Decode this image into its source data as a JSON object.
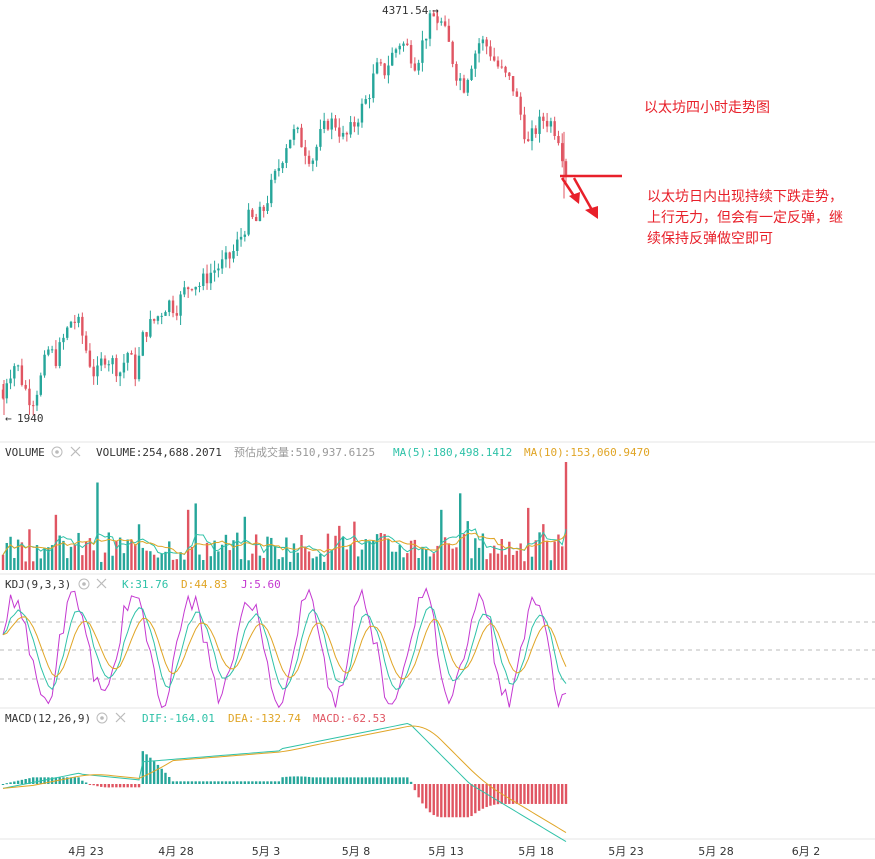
{
  "chart_data": {
    "type": "candlestick",
    "price": {
      "high_label": "4371.54",
      "low_label": "1940",
      "high": 4371.54,
      "low": 1940,
      "series": [
        {
          "x": 0,
          "y": 2040
        },
        {
          "x": 8,
          "y": 2180
        },
        {
          "x": 16,
          "y": 2260
        },
        {
          "x": 24,
          "y": 2110
        },
        {
          "x": 32,
          "y": 2020
        },
        {
          "x": 40,
          "y": 2140
        },
        {
          "x": 48,
          "y": 2330
        },
        {
          "x": 56,
          "y": 2280
        },
        {
          "x": 64,
          "y": 2400
        },
        {
          "x": 72,
          "y": 2520
        },
        {
          "x": 80,
          "y": 2470
        },
        {
          "x": 88,
          "y": 2290
        },
        {
          "x": 96,
          "y": 2160
        },
        {
          "x": 104,
          "y": 2300
        },
        {
          "x": 112,
          "y": 2260
        },
        {
          "x": 120,
          "y": 2200
        },
        {
          "x": 128,
          "y": 2320
        },
        {
          "x": 136,
          "y": 2180
        },
        {
          "x": 144,
          "y": 2440
        },
        {
          "x": 152,
          "y": 2490
        },
        {
          "x": 160,
          "y": 2550
        },
        {
          "x": 168,
          "y": 2620
        },
        {
          "x": 176,
          "y": 2580
        },
        {
          "x": 184,
          "y": 2680
        },
        {
          "x": 192,
          "y": 2740
        },
        {
          "x": 200,
          "y": 2720
        },
        {
          "x": 208,
          "y": 2780
        },
        {
          "x": 216,
          "y": 2820
        },
        {
          "x": 224,
          "y": 2850
        },
        {
          "x": 232,
          "y": 2900
        },
        {
          "x": 240,
          "y": 3000
        },
        {
          "x": 248,
          "y": 3120
        },
        {
          "x": 256,
          "y": 3100
        },
        {
          "x": 264,
          "y": 3180
        },
        {
          "x": 272,
          "y": 3320
        },
        {
          "x": 280,
          "y": 3450
        },
        {
          "x": 288,
          "y": 3600
        },
        {
          "x": 296,
          "y": 3640
        },
        {
          "x": 304,
          "y": 3550
        },
        {
          "x": 312,
          "y": 3470
        },
        {
          "x": 320,
          "y": 3610
        },
        {
          "x": 328,
          "y": 3700
        },
        {
          "x": 336,
          "y": 3690
        },
        {
          "x": 344,
          "y": 3590
        },
        {
          "x": 352,
          "y": 3660
        },
        {
          "x": 360,
          "y": 3760
        },
        {
          "x": 368,
          "y": 3850
        },
        {
          "x": 376,
          "y": 4020
        },
        {
          "x": 384,
          "y": 4000
        },
        {
          "x": 392,
          "y": 4100
        },
        {
          "x": 400,
          "y": 4180
        },
        {
          "x": 408,
          "y": 4140
        },
        {
          "x": 416,
          "y": 4050
        },
        {
          "x": 424,
          "y": 4200
        },
        {
          "x": 432,
          "y": 4330
        },
        {
          "x": 440,
          "y": 4310
        },
        {
          "x": 448,
          "y": 4180
        },
        {
          "x": 456,
          "y": 4000
        },
        {
          "x": 464,
          "y": 3920
        },
        {
          "x": 472,
          "y": 4070
        },
        {
          "x": 480,
          "y": 4190
        },
        {
          "x": 488,
          "y": 4150
        },
        {
          "x": 496,
          "y": 4050
        },
        {
          "x": 504,
          "y": 3980
        },
        {
          "x": 512,
          "y": 3930
        },
        {
          "x": 520,
          "y": 3760
        },
        {
          "x": 528,
          "y": 3560
        },
        {
          "x": 536,
          "y": 3660
        },
        {
          "x": 544,
          "y": 3720
        },
        {
          "x": 552,
          "y": 3690
        },
        {
          "x": 560,
          "y": 3600
        },
        {
          "x": 566,
          "y": 3380
        }
      ]
    },
    "volume": {
      "title": "VOLUME",
      "items": [
        {
          "text": "VOLUME:254,688.2071",
          "color": "#333333"
        },
        {
          "text": "预估成交量:510,937.6125",
          "color": "#999999"
        },
        {
          "text": "MA(5):180,498.1412",
          "color": "#2fc2a8"
        },
        {
          "text": "MA(10):153,060.9470",
          "color": "#e0a526"
        }
      ]
    },
    "kdj": {
      "title": "KDJ(9,3,3)",
      "items": [
        {
          "text": "K:31.76",
          "color": "#2fc2a8"
        },
        {
          "text": "D:44.83",
          "color": "#e0a526"
        },
        {
          "text": "J:5.60",
          "color": "#c438d1"
        }
      ]
    },
    "macd": {
      "title": "MACD(12,26,9)",
      "items": [
        {
          "text": "DIF:-164.01",
          "color": "#2fc2a8"
        },
        {
          "text": "DEA:-132.74",
          "color": "#e0a526"
        },
        {
          "text": "MACD:-62.53",
          "color": "#e05562"
        }
      ]
    },
    "x_ticks": [
      {
        "label": "4月 23",
        "x": 86
      },
      {
        "label": "4月 28",
        "x": 176
      },
      {
        "label": "5月 3",
        "x": 266
      },
      {
        "label": "5月 8",
        "x": 356
      },
      {
        "label": "5月 13",
        "x": 446
      },
      {
        "label": "5月 18",
        "x": 536
      },
      {
        "label": "5月 23",
        "x": 626
      },
      {
        "label": "5月 28",
        "x": 716
      },
      {
        "label": "6月 2",
        "x": 806
      }
    ]
  },
  "annotation": {
    "title": "以太坊四小时走势图",
    "lines": [
      "以太坊日内出现持续下跌走势，",
      "上行无力，但会有一定反弹，继",
      "续保持反弹做空即可"
    ],
    "color": "#e8202a"
  },
  "colors": {
    "up": "#26a69a",
    "down": "#e05562",
    "grid": "#e6e6e6",
    "text": "#333333"
  }
}
